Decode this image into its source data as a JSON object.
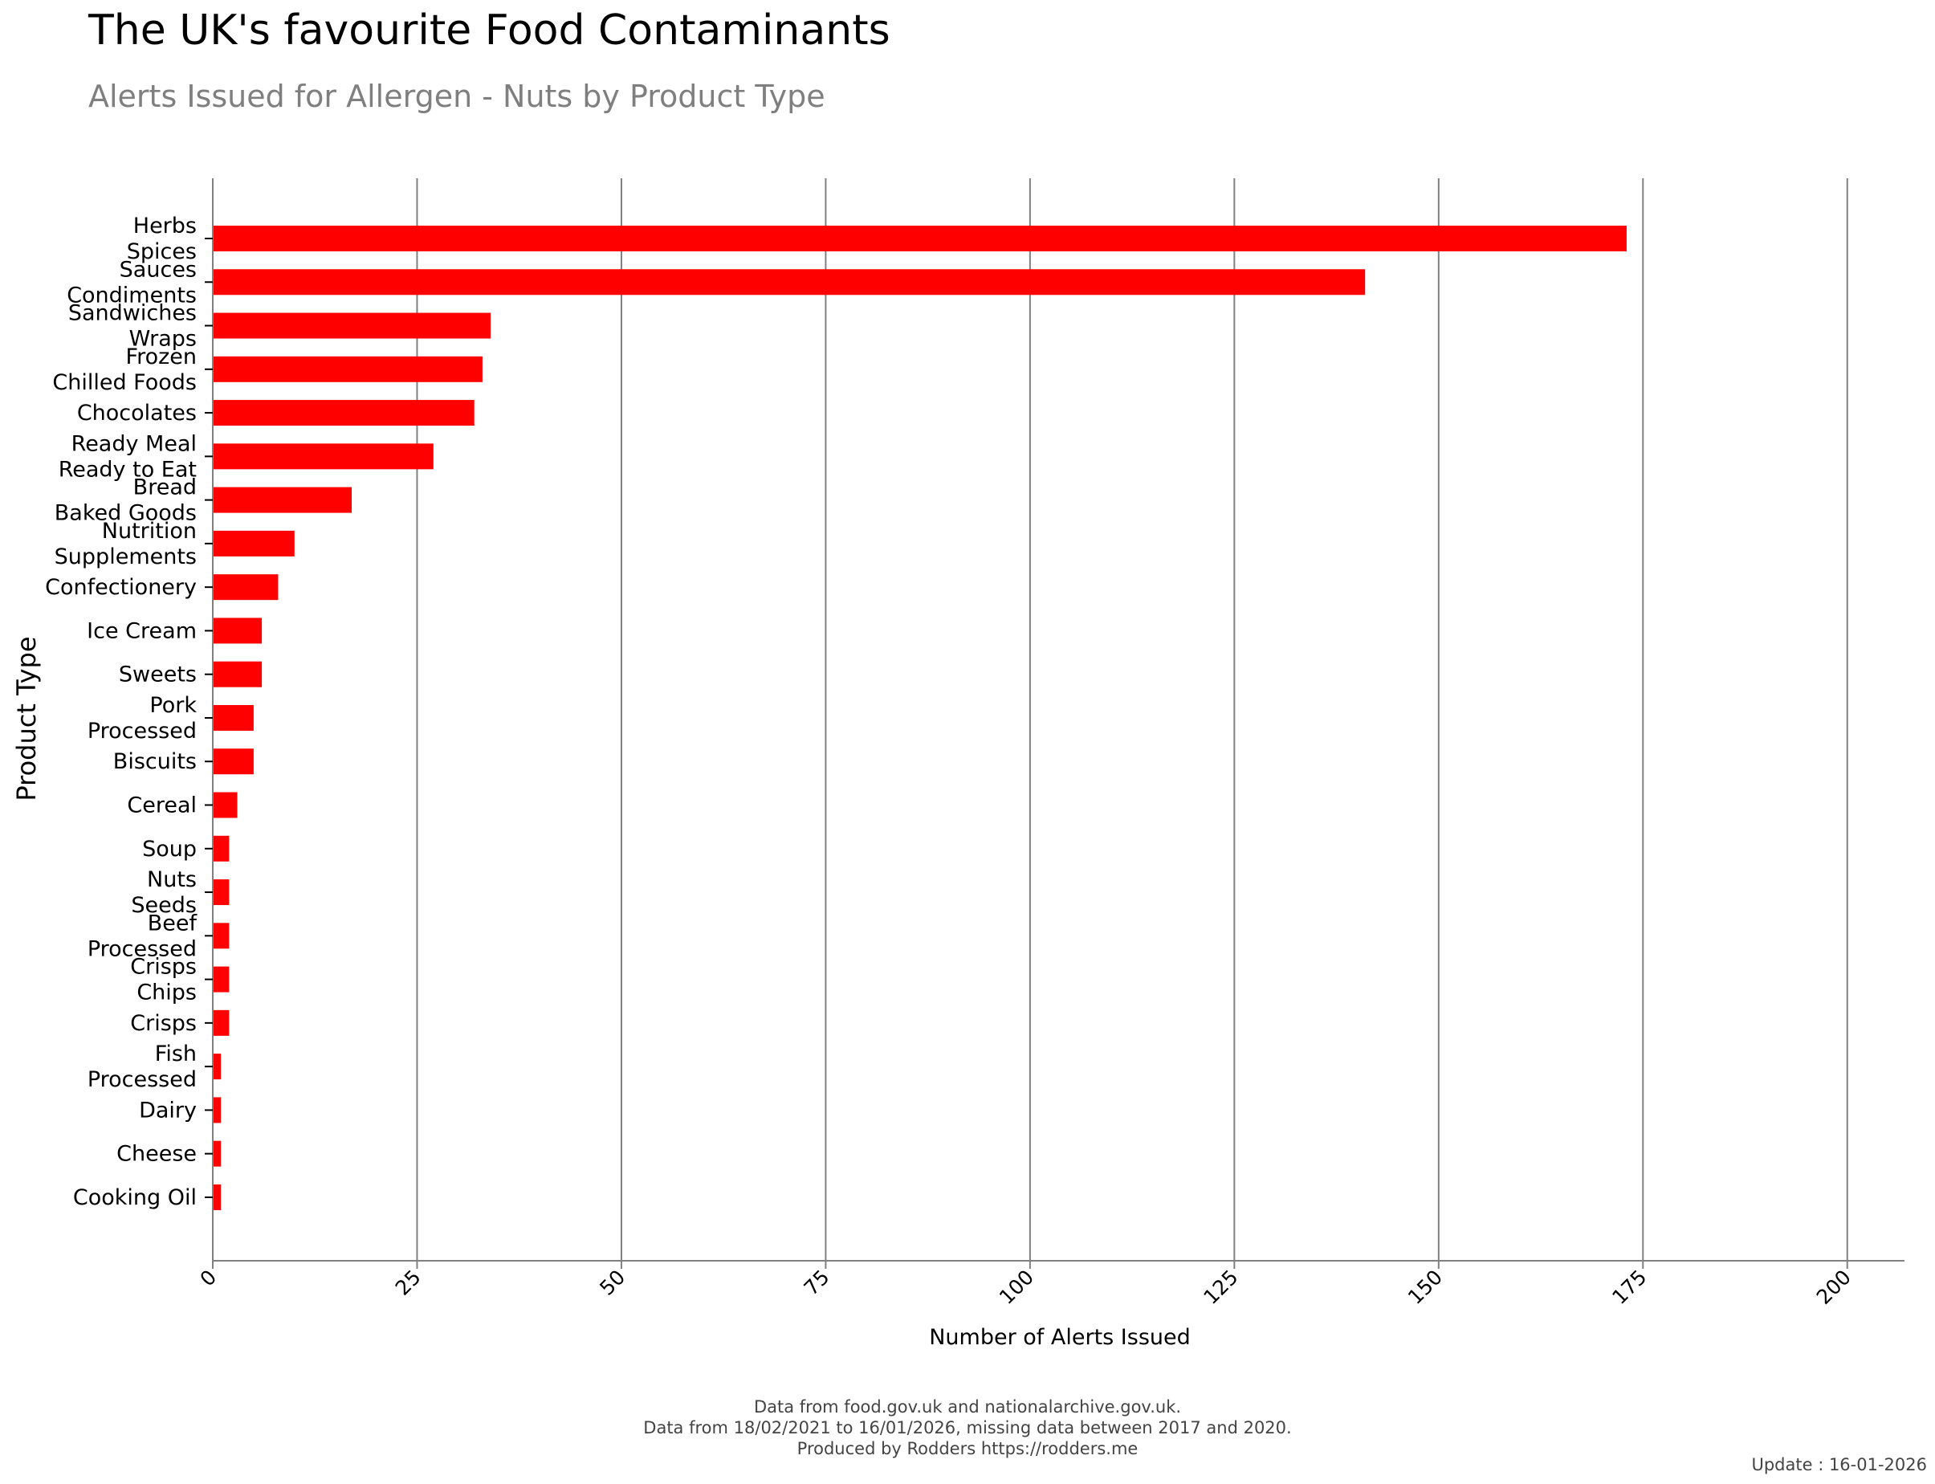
{
  "colors": {
    "bar": "#ff0000",
    "grid": "#808080",
    "axis": "#808080",
    "text": "#000000",
    "subtitle": "#7f7f7f",
    "footer": "#444444"
  },
  "chart_data": {
    "type": "bar",
    "orientation": "horizontal",
    "title": "The UK's favourite Food Contaminants",
    "subtitle": "Alerts Issued for Allergen - Nuts by Product Type",
    "xlabel": "Number of Alerts Issued",
    "ylabel": "Product Type",
    "xlim": [
      0,
      207
    ],
    "xticks": [
      0,
      25,
      50,
      75,
      100,
      125,
      150,
      175,
      200
    ],
    "grid": true,
    "categories": [
      [
        "Herbs",
        "Spices"
      ],
      [
        "Sauces",
        "Condiments"
      ],
      [
        "Sandwiches",
        "Wraps"
      ],
      [
        "Frozen",
        "Chilled Foods"
      ],
      [
        "Chocolates"
      ],
      [
        "Ready Meal",
        "Ready to Eat"
      ],
      [
        "Bread",
        "Baked Goods"
      ],
      [
        "Nutrition",
        "Supplements"
      ],
      [
        "Confectionery"
      ],
      [
        "Ice Cream"
      ],
      [
        "Sweets"
      ],
      [
        "Pork",
        "Processed"
      ],
      [
        "Biscuits"
      ],
      [
        "Cereal"
      ],
      [
        "Soup"
      ],
      [
        "Nuts",
        "Seeds"
      ],
      [
        "Beef",
        "Processed"
      ],
      [
        "Crisps",
        "Chips"
      ],
      [
        "Crisps"
      ],
      [
        "Fish",
        "Processed"
      ],
      [
        "Dairy"
      ],
      [
        "Cheese"
      ],
      [
        "Cooking Oil"
      ]
    ],
    "values": [
      173,
      141,
      34,
      33,
      32,
      27,
      17,
      10,
      8,
      6,
      6,
      5,
      5,
      3,
      2,
      2,
      2,
      2,
      2,
      1,
      1,
      1,
      1
    ]
  },
  "footer": {
    "line1": "Data from food.gov.uk and nationalarchive.gov.uk.",
    "line2": "Data from 18/02/2021 to 16/01/2026, missing data between 2017 and 2020.",
    "line3": "Produced by Rodders https://rodders.me",
    "update": "Update : 16-01-2026"
  }
}
